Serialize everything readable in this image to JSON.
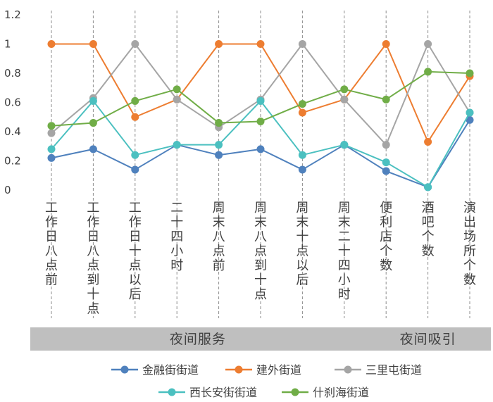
{
  "chart_data": {
    "type": "line",
    "title": "",
    "xlabel": "",
    "ylabel": "",
    "ylim": [
      0,
      1.2
    ],
    "yticks": [
      "0",
      "0.2",
      "0.4",
      "0.6",
      "0.8",
      "1",
      "1.2"
    ],
    "categories": [
      "工作日八点前",
      "工作日八点到十点",
      "工作日十点以后",
      "二十四小时",
      "周末八点前",
      "周末八点到十点",
      "周末十点以后",
      "周末二十四小时",
      "便利店个数",
      "酒吧个数",
      "演出场所个数"
    ],
    "groups": [
      {
        "label": "夜间服务",
        "start": 0,
        "end": 7
      },
      {
        "label": "夜间吸引",
        "start": 8,
        "end": 10
      }
    ],
    "series": [
      {
        "name": "金融街街道",
        "color": "#4f81bd",
        "values": [
          0.22,
          0.28,
          0.14,
          0.31,
          0.24,
          0.28,
          0.14,
          0.31,
          0.13,
          0.02,
          0.48
        ]
      },
      {
        "name": "建外街道",
        "color": "#ed7d31",
        "values": [
          1.0,
          1.0,
          0.5,
          0.62,
          1.0,
          1.0,
          0.53,
          0.62,
          1.0,
          0.33,
          0.78
        ]
      },
      {
        "name": "三里屯街道",
        "color": "#a5a5a5",
        "values": [
          0.39,
          0.63,
          1.0,
          0.62,
          0.43,
          0.62,
          1.0,
          0.62,
          0.31,
          1.0,
          0.53
        ]
      },
      {
        "name": "西长安街街道",
        "color": "#4bc0c0",
        "values": [
          0.28,
          0.61,
          0.24,
          0.31,
          0.31,
          0.61,
          0.24,
          0.31,
          0.19,
          0.02,
          0.53
        ]
      },
      {
        "name": "什刹海街道",
        "color": "#70ad47",
        "values": [
          0.44,
          0.46,
          0.61,
          0.69,
          0.46,
          0.47,
          0.59,
          0.69,
          0.62,
          0.81,
          0.8
        ]
      }
    ],
    "grid": "vertical-dashed",
    "legend": "bottom"
  }
}
